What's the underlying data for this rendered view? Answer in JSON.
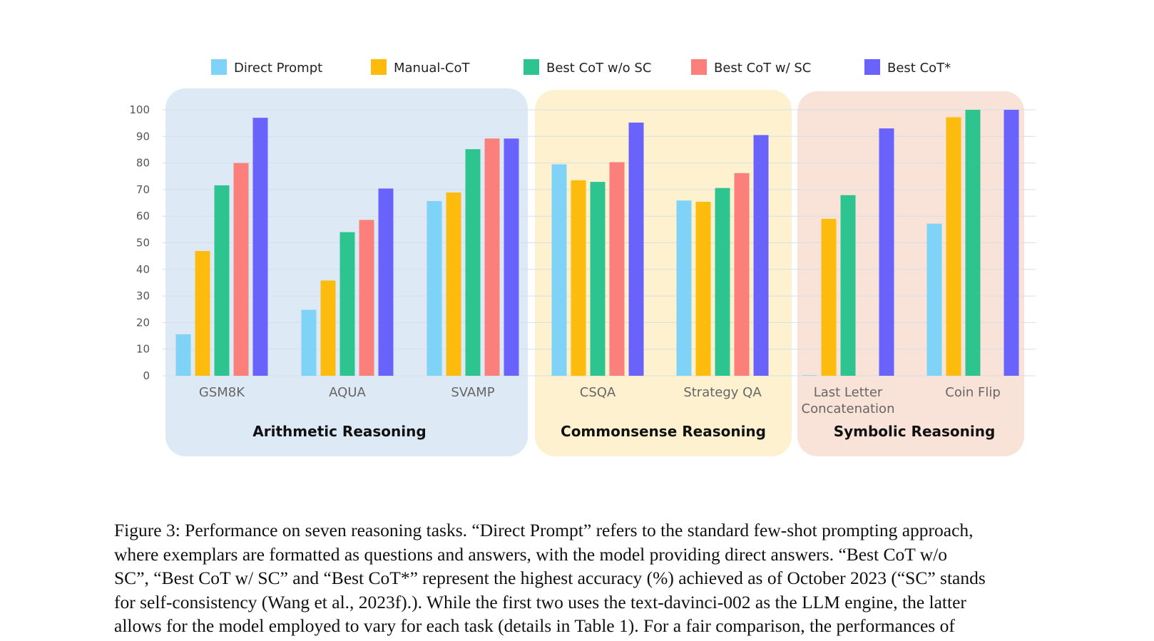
{
  "chart_data": {
    "type": "bar",
    "title": "",
    "xlabel": "",
    "ylabel": "",
    "ylim": [
      0,
      100
    ],
    "yticks": [
      0,
      10,
      20,
      30,
      40,
      50,
      60,
      70,
      80,
      90,
      100
    ],
    "grid": true,
    "legend_position": "top",
    "groups": [
      {
        "label": "Arithmetic Reasoning",
        "color": "#dee9f6",
        "categories": [
          "GSM8K",
          "AQUA",
          "SVAMP"
        ]
      },
      {
        "label": "Commonsense Reasoning",
        "color": "#fdf1cf",
        "categories": [
          "CSQA",
          "Strategy QA"
        ]
      },
      {
        "label": "Symbolic Reasoning",
        "color": "#f9e3d8",
        "categories": [
          "Last Letter Concatenation",
          "Coin Flip"
        ]
      }
    ],
    "categories": [
      "GSM8K",
      "AQUA",
      "SVAMP",
      "CSQA",
      "Strategy QA",
      "Last Letter Concatenation",
      "Coin Flip"
    ],
    "series": [
      {
        "name": "Direct Prompt",
        "color": "#7ed3f7",
        "values": [
          15.6,
          24.8,
          65.7,
          79.5,
          65.9,
          0.2,
          57.2
        ]
      },
      {
        "name": "Manual-CoT",
        "color": "#fdbb0e",
        "values": [
          46.9,
          35.8,
          68.9,
          73.5,
          65.4,
          59.0,
          97.2
        ]
      },
      {
        "name": "Best CoT w/o SC",
        "color": "#2ec48f",
        "values": [
          71.6,
          54.0,
          85.2,
          72.9,
          70.6,
          67.9,
          100
        ]
      },
      {
        "name": "Best CoT w/ SC",
        "color": "#fb7f7a",
        "values": [
          80.0,
          58.6,
          89.2,
          80.3,
          76.2,
          0,
          0
        ]
      },
      {
        "name": "Best CoT*",
        "color": "#6a63fb",
        "values": [
          97.0,
          70.4,
          89.2,
          95.2,
          90.5,
          93.0,
          100
        ]
      }
    ]
  },
  "caption": [
    "Figure 3: Performance on seven reasoning tasks. “Direct Prompt” refers to the standard few-shot prompting approach,",
    "where exemplars are formatted as questions and answers, with the model providing direct answers. “Best CoT w/o",
    "SC”, “Best CoT w/ SC” and “Best CoT*” represent the highest accuracy (%) achieved as of October 2023 (“SC” stands",
    "for self-consistency (Wang et al., 2023f).). While the first two uses the text-davinci-002 as the LLM engine, the latter",
    "allows for the model employed to vary for each task (details in Table 1). For a fair comparison, the performances of"
  ]
}
